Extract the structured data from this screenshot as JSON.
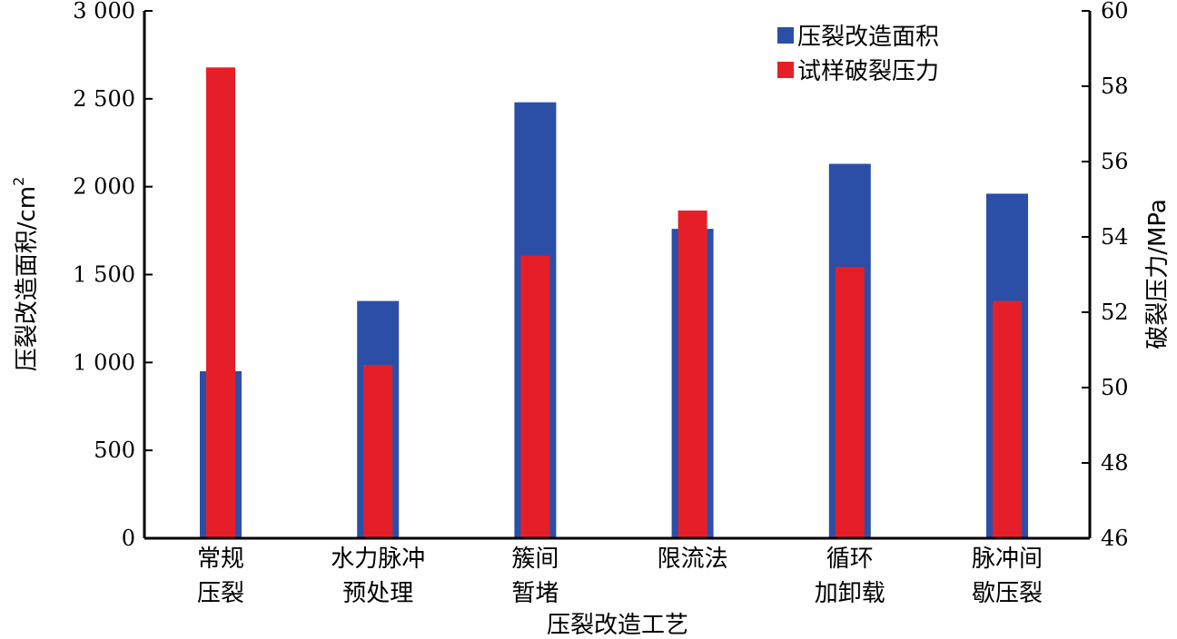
{
  "chart_data": {
    "type": "bar",
    "categories": [
      [
        "常规",
        "压裂"
      ],
      [
        "水力脉冲",
        "预处理"
      ],
      [
        "簇间",
        "暂堵"
      ],
      [
        "限流法"
      ],
      [
        "循环",
        "加卸载"
      ],
      [
        "脉冲间",
        "歇压裂"
      ]
    ],
    "xlabel": "压裂改造工艺",
    "ylabel_left": "压裂改造面积/cm",
    "ylabel_left_superscript": "2",
    "ylabel_right": "破裂压力/MPa",
    "ylim_left": [
      0,
      3000
    ],
    "ylim_right": [
      46,
      60
    ],
    "yticks_left": [
      {
        "value": 0,
        "label": "0"
      },
      {
        "value": 500,
        "label": "500"
      },
      {
        "value": 1000,
        "label": "1 000"
      },
      {
        "value": 1500,
        "label": "1 500"
      },
      {
        "value": 2000,
        "label": "2 000"
      },
      {
        "value": 2500,
        "label": "2 500"
      },
      {
        "value": 3000,
        "label": "3 000"
      }
    ],
    "yticks_right": [
      46,
      48,
      50,
      52,
      54,
      56,
      58,
      60
    ],
    "series": [
      {
        "name": "压裂改造面积",
        "axis": "left",
        "color": "#2b4fa6",
        "values": [
          950,
          1350,
          2480,
          1760,
          2130,
          1960
        ]
      },
      {
        "name": "试样破裂压力",
        "axis": "right",
        "color": "#e61e28",
        "values": [
          58.5,
          50.6,
          53.5,
          54.7,
          53.2,
          52.3
        ]
      }
    ],
    "legend_position": "top-right",
    "grid": false
  }
}
